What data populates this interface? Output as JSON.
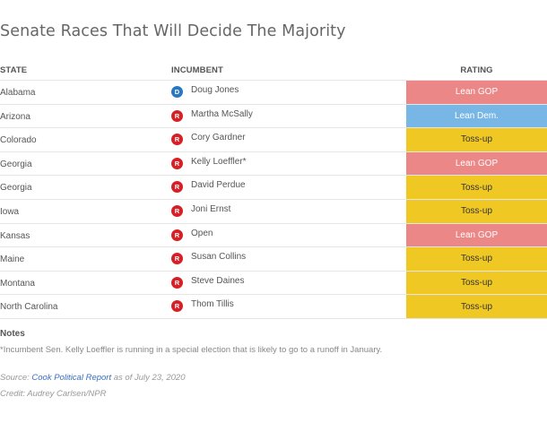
{
  "title": "Senate Races That Will Decide The Majority",
  "table": {
    "headers": {
      "state": "STATE",
      "incumbent": "INCUMBENT",
      "rating": "RATING"
    },
    "rows": [
      {
        "state": "Alabama",
        "party": "D",
        "incumbent": "Doug Jones",
        "rating": "Lean GOP"
      },
      {
        "state": "Arizona",
        "party": "R",
        "incumbent": "Martha McSally",
        "rating": "Lean Dem."
      },
      {
        "state": "Colorado",
        "party": "R",
        "incumbent": "Cory Gardner",
        "rating": "Toss-up"
      },
      {
        "state": "Georgia",
        "party": "R",
        "incumbent": "Kelly Loeffler*",
        "rating": "Lean GOP"
      },
      {
        "state": "Georgia",
        "party": "R",
        "incumbent": "David Perdue",
        "rating": "Toss-up"
      },
      {
        "state": "Iowa",
        "party": "R",
        "incumbent": "Joni Ernst",
        "rating": "Toss-up"
      },
      {
        "state": "Kansas",
        "party": "R",
        "incumbent": "Open",
        "rating": "Lean GOP"
      },
      {
        "state": "Maine",
        "party": "R",
        "incumbent": "Susan Collins",
        "rating": "Toss-up"
      },
      {
        "state": "Montana",
        "party": "R",
        "incumbent": "Steve Daines",
        "rating": "Toss-up"
      },
      {
        "state": "North Carolina",
        "party": "R",
        "incumbent": "Thom Tillis",
        "rating": "Toss-up"
      }
    ]
  },
  "colors": {
    "party": {
      "D": "#2a78c0",
      "R": "#d71f26"
    },
    "rating_bg": {
      "Lean GOP": "#ec8787",
      "Lean Dem.": "#77b6e5",
      "Toss-up": "#f0c823"
    },
    "rating_fg": {
      "Lean GOP": "#ffffff",
      "Lean Dem.": "#ffffff",
      "Toss-up": "#333333"
    }
  },
  "notes": {
    "heading": "Notes",
    "text": "*Incumbent Sen. Kelly Loeffler is running in a special election that is likely to go to a runoff in January."
  },
  "source": {
    "prefix": "Source: ",
    "link_text": "Cook Political Report",
    "suffix": " as of July 23, 2020"
  },
  "credit": "Credit: Audrey Carlsen/NPR"
}
